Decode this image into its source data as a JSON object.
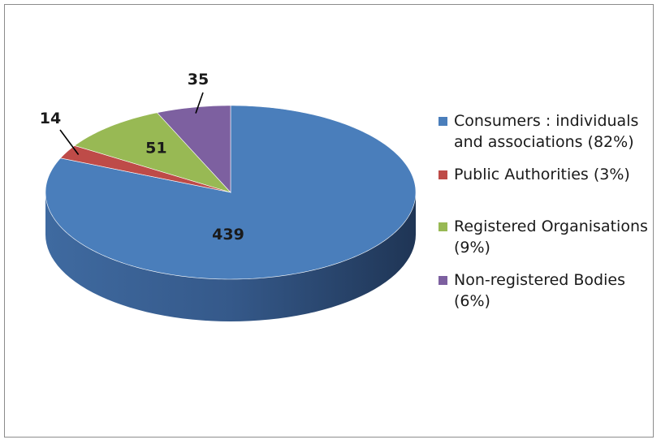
{
  "chart_data": {
    "type": "pie",
    "style": "3d-tilted",
    "start_angle_clock": "12 o'clock, clockwise",
    "colors": [
      "#4a7ebb",
      "#be4b48",
      "#98b954",
      "#7d60a0"
    ],
    "slices": [
      {
        "label": "Consumers : individuals and associations (82%)",
        "value": 439,
        "color": "#4a7ebb"
      },
      {
        "label": "Public Authorities (3%)",
        "value": 14,
        "color": "#be4b48"
      },
      {
        "label": "Registered Organisations (9%)",
        "value": 51,
        "color": "#98b954"
      },
      {
        "label": "Non-registered Bodies (6%)",
        "value": 35,
        "color": "#7d60a0"
      }
    ],
    "legend_position": "right"
  }
}
